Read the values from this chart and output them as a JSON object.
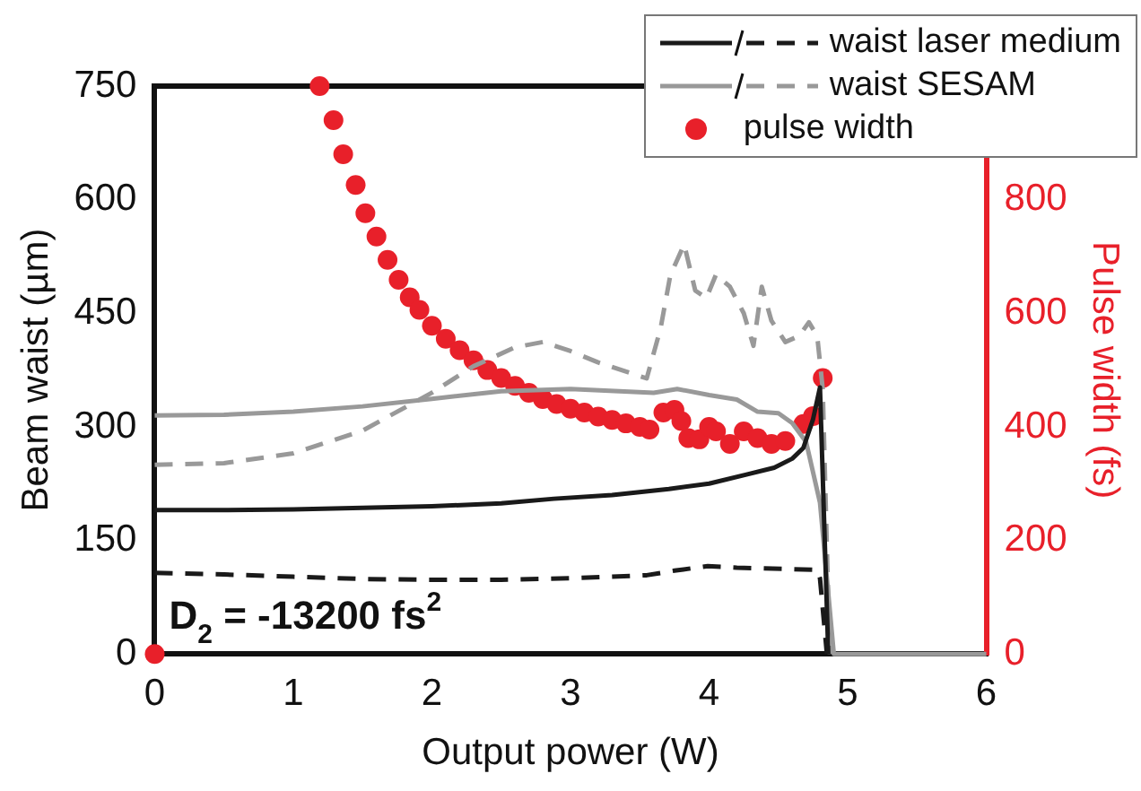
{
  "chart_data": {
    "type": "line",
    "xlabel": "Output power (W)",
    "ylabel": "Beam waist (µm)",
    "y2label": "Pulse width (fs)",
    "xlim": [
      0,
      6
    ],
    "xticks": [
      0,
      1,
      2,
      3,
      4,
      5,
      6
    ],
    "ylim": [
      0,
      750
    ],
    "yticks": [
      0,
      150,
      300,
      450,
      600,
      750
    ],
    "y2lim": [
      0,
      1000
    ],
    "y2ticks": [
      0,
      200,
      400,
      600,
      800
    ],
    "legend": "top right",
    "grid": false,
    "annotations": [
      "D$_{2}$ = -13200 fs$^{2}$"
    ],
    "series": [
      {
        "name": "waist laser medium",
        "type": "line",
        "line_style": "solid",
        "marker": "none",
        "color": "#1a1a1a",
        "x": [
          0,
          0.5,
          1,
          1.5,
          2,
          2.5,
          2.88,
          3.3,
          3.71,
          4.0,
          4.27,
          4.47,
          4.6,
          4.68,
          4.75,
          4.8,
          4.86
        ],
        "values": [
          190,
          190,
          191,
          193,
          195,
          199,
          205,
          210,
          218,
          225,
          237,
          246,
          258,
          272,
          310,
          352,
          0
        ]
      },
      {
        "type": "line",
        "line_style": "dashed",
        "marker": "none",
        "color": "#1a1a1a",
        "x": [
          0,
          0.5,
          1,
          1.5,
          2,
          2.5,
          3,
          3.55,
          3.75,
          3.99,
          4.2,
          4.4,
          4.78,
          4.8,
          4.85
        ],
        "values": [
          107,
          105,
          102,
          99,
          98,
          98,
          100,
          104,
          110,
          116,
          114,
          113,
          111,
          100,
          0
        ]
      },
      {
        "name": "waist SESAM",
        "type": "line",
        "line_style": "solid",
        "marker": "none",
        "color": "#999999",
        "x": [
          0,
          0.5,
          1,
          1.5,
          2,
          2.5,
          3,
          3.6,
          3.77,
          4.0,
          4.2,
          4.35,
          4.5,
          4.6,
          4.7,
          4.8,
          4.9,
          6
        ],
        "values": [
          315,
          316,
          320,
          327,
          337,
          347,
          350,
          345,
          350,
          342,
          336,
          320,
          318,
          305,
          280,
          200,
          0,
          0
        ]
      },
      {
        "type": "line",
        "line_style": "dashed",
        "marker": "none",
        "color": "#999999",
        "x": [
          0,
          0.5,
          1,
          1.5,
          2,
          2.3,
          2.6,
          2.8,
          3.0,
          3.2,
          3.55,
          3.65,
          3.72,
          3.82,
          3.9,
          3.98,
          4.05,
          4.15,
          4.25,
          4.32,
          4.38,
          4.45,
          4.55,
          4.65,
          4.72,
          4.78,
          4.82,
          4.87
        ],
        "values": [
          250,
          252,
          265,
          295,
          345,
          380,
          405,
          412,
          400,
          385,
          364,
          430,
          500,
          541,
          480,
          470,
          501,
          485,
          450,
          407,
          485,
          440,
          412,
          420,
          438,
          420,
          350,
          0
        ]
      },
      {
        "name": "pulse width",
        "type": "scatter",
        "axis": "y2",
        "marker": "circle",
        "color": "#e8202a",
        "x": [
          0,
          1.19,
          1.29,
          1.36,
          1.45,
          1.52,
          1.6,
          1.68,
          1.76,
          1.84,
          1.91,
          2.0,
          2.1,
          2.2,
          2.3,
          2.4,
          2.5,
          2.6,
          2.7,
          2.8,
          2.9,
          3.0,
          3.1,
          3.2,
          3.3,
          3.4,
          3.5,
          3.57,
          3.67,
          3.75,
          3.8,
          3.85,
          3.93,
          4.0,
          4.05,
          4.15,
          4.25,
          4.35,
          4.45,
          4.55,
          4.68,
          4.75,
          4.82
        ],
        "values": [
          0,
          1000,
          940,
          880,
          826,
          776,
          735,
          694,
          659,
          628,
          606,
          578,
          555,
          535,
          517,
          500,
          486,
          472,
          460,
          449,
          440,
          432,
          425,
          418,
          412,
          406,
          400,
          395,
          425,
          430,
          410,
          380,
          378,
          400,
          392,
          370,
          392,
          380,
          370,
          375,
          405,
          419,
          486
        ]
      }
    ]
  }
}
